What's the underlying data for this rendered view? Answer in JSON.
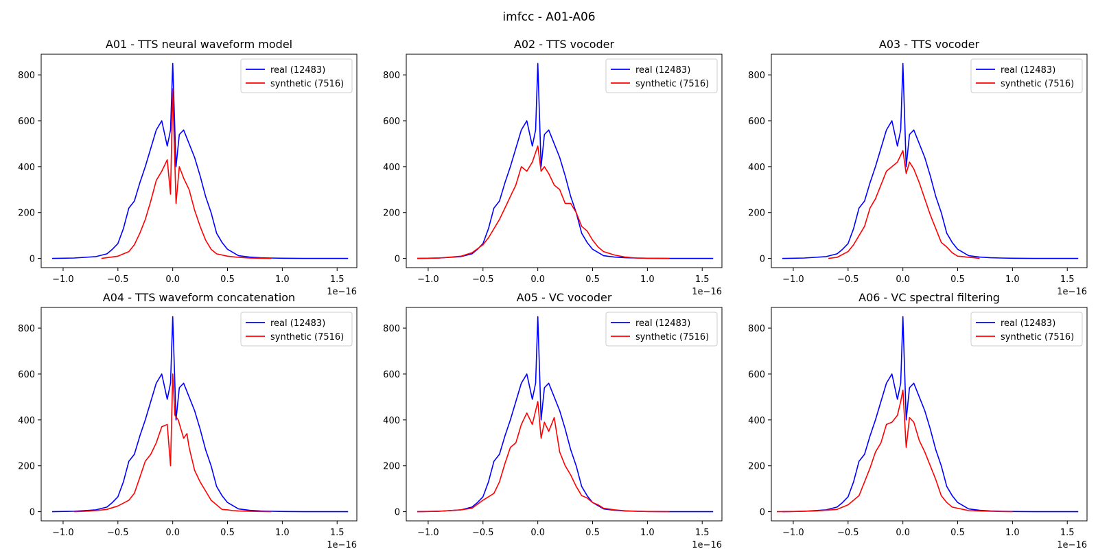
{
  "figure_title": "imfcc - A01-A06",
  "chart_data": [
    {
      "type": "line",
      "title": "A01 - TTS neural waveform model",
      "xlim": [
        -1.2,
        1.68
      ],
      "ylim": [
        -40,
        890
      ],
      "x_ticks": [
        -1.0,
        -0.5,
        0.0,
        0.5,
        1.0,
        1.5
      ],
      "x_tick_labels": [
        "−1.0",
        "−0.5",
        "0.0",
        "0.5",
        "1.0",
        "1.5"
      ],
      "y_ticks": [
        0,
        200,
        400,
        600,
        800
      ],
      "y_tick_labels": [
        "0",
        "200",
        "400",
        "600",
        "800"
      ],
      "x_offset_label": "1e−16",
      "legend": [
        "real (12483)",
        "synthetic (7516)"
      ],
      "series": [
        {
          "name": "real (12483)",
          "color": "#0000ff",
          "x": [
            -1.1,
            -0.9,
            -0.7,
            -0.6,
            -0.55,
            -0.5,
            -0.45,
            -0.4,
            -0.35,
            -0.3,
            -0.25,
            -0.2,
            -0.15,
            -0.1,
            -0.05,
            -0.02,
            0.0,
            0.03,
            0.06,
            0.1,
            0.15,
            0.2,
            0.25,
            0.3,
            0.35,
            0.4,
            0.45,
            0.5,
            0.6,
            0.7,
            0.8,
            0.9,
            1.0,
            1.2,
            1.4,
            1.6
          ],
          "y": [
            0,
            2,
            8,
            20,
            40,
            65,
            130,
            220,
            250,
            330,
            400,
            480,
            560,
            600,
            490,
            560,
            850,
            400,
            540,
            560,
            500,
            440,
            360,
            270,
            200,
            110,
            70,
            40,
            12,
            6,
            3,
            2,
            1,
            0,
            0,
            0
          ]
        },
        {
          "name": "synthetic (7516)",
          "color": "#ff0000",
          "x": [
            -0.65,
            -0.5,
            -0.4,
            -0.35,
            -0.3,
            -0.25,
            -0.2,
            -0.15,
            -0.1,
            -0.05,
            -0.02,
            0.0,
            0.03,
            0.06,
            0.1,
            0.15,
            0.2,
            0.25,
            0.3,
            0.35,
            0.4,
            0.5,
            0.6,
            0.7,
            0.8,
            0.9
          ],
          "y": [
            0,
            10,
            30,
            60,
            110,
            170,
            250,
            340,
            380,
            430,
            280,
            740,
            240,
            400,
            350,
            300,
            210,
            140,
            80,
            40,
            20,
            10,
            5,
            2,
            1,
            0
          ]
        }
      ]
    },
    {
      "type": "line",
      "title": "A02 - TTS vocoder",
      "xlim": [
        -1.2,
        1.68
      ],
      "ylim": [
        -40,
        890
      ],
      "x_ticks": [
        -1.0,
        -0.5,
        0.0,
        0.5,
        1.0,
        1.5
      ],
      "x_tick_labels": [
        "−1.0",
        "−0.5",
        "0.0",
        "0.5",
        "1.0",
        "1.5"
      ],
      "y_ticks": [
        0,
        200,
        400,
        600,
        800
      ],
      "y_tick_labels": [
        "0",
        "200",
        "400",
        "600",
        "800"
      ],
      "x_offset_label": "1e−16",
      "legend": [
        "real (12483)",
        "synthetic (7516)"
      ],
      "series": [
        {
          "name": "real (12483)",
          "color": "#0000ff",
          "x": [
            -1.1,
            -0.9,
            -0.7,
            -0.6,
            -0.55,
            -0.5,
            -0.45,
            -0.4,
            -0.35,
            -0.3,
            -0.25,
            -0.2,
            -0.15,
            -0.1,
            -0.05,
            -0.02,
            0.0,
            0.03,
            0.06,
            0.1,
            0.15,
            0.2,
            0.25,
            0.3,
            0.35,
            0.4,
            0.45,
            0.5,
            0.6,
            0.7,
            0.8,
            0.9,
            1.0,
            1.2,
            1.4,
            1.6
          ],
          "y": [
            0,
            2,
            8,
            20,
            40,
            65,
            130,
            220,
            250,
            330,
            400,
            480,
            560,
            600,
            490,
            560,
            850,
            400,
            540,
            560,
            500,
            440,
            360,
            270,
            200,
            110,
            70,
            40,
            12,
            6,
            3,
            2,
            1,
            0,
            0,
            0
          ]
        },
        {
          "name": "synthetic (7516)",
          "color": "#ff0000",
          "x": [
            -1.1,
            -0.9,
            -0.7,
            -0.6,
            -0.5,
            -0.45,
            -0.4,
            -0.35,
            -0.3,
            -0.25,
            -0.2,
            -0.15,
            -0.1,
            -0.05,
            0.0,
            0.03,
            0.06,
            0.1,
            0.15,
            0.2,
            0.25,
            0.3,
            0.35,
            0.4,
            0.45,
            0.5,
            0.55,
            0.6,
            0.7,
            0.8,
            0.9,
            1.0,
            1.2
          ],
          "y": [
            0,
            2,
            10,
            25,
            60,
            90,
            130,
            170,
            220,
            270,
            320,
            400,
            380,
            420,
            490,
            380,
            400,
            370,
            320,
            300,
            240,
            240,
            200,
            140,
            120,
            80,
            50,
            30,
            15,
            6,
            2,
            1,
            0
          ]
        }
      ]
    },
    {
      "type": "line",
      "title": "A03 - TTS vocoder",
      "xlim": [
        -1.2,
        1.68
      ],
      "ylim": [
        -40,
        890
      ],
      "x_ticks": [
        -1.0,
        -0.5,
        0.0,
        0.5,
        1.0,
        1.5
      ],
      "x_tick_labels": [
        "−1.0",
        "−0.5",
        "0.0",
        "0.5",
        "1.0",
        "1.5"
      ],
      "y_ticks": [
        0,
        200,
        400,
        600,
        800
      ],
      "y_tick_labels": [
        "0",
        "200",
        "400",
        "600",
        "800"
      ],
      "x_offset_label": "1e−16",
      "legend": [
        "real (12483)",
        "synthetic (7516)"
      ],
      "series": [
        {
          "name": "real (12483)",
          "color": "#0000ff",
          "x": [
            -1.1,
            -0.9,
            -0.7,
            -0.6,
            -0.55,
            -0.5,
            -0.45,
            -0.4,
            -0.35,
            -0.3,
            -0.25,
            -0.2,
            -0.15,
            -0.1,
            -0.05,
            -0.02,
            0.0,
            0.03,
            0.06,
            0.1,
            0.15,
            0.2,
            0.25,
            0.3,
            0.35,
            0.4,
            0.45,
            0.5,
            0.6,
            0.7,
            0.8,
            0.9,
            1.0,
            1.2,
            1.4,
            1.6
          ],
          "y": [
            0,
            2,
            8,
            20,
            40,
            65,
            130,
            220,
            250,
            330,
            400,
            480,
            560,
            600,
            490,
            560,
            850,
            400,
            540,
            560,
            500,
            440,
            360,
            270,
            200,
            110,
            70,
            40,
            12,
            6,
            3,
            2,
            1,
            0,
            0,
            0
          ]
        },
        {
          "name": "synthetic (7516)",
          "color": "#ff0000",
          "x": [
            -0.68,
            -0.6,
            -0.5,
            -0.45,
            -0.4,
            -0.35,
            -0.3,
            -0.25,
            -0.2,
            -0.15,
            -0.1,
            -0.05,
            0.0,
            0.03,
            0.06,
            0.1,
            0.15,
            0.2,
            0.25,
            0.3,
            0.35,
            0.4,
            0.45,
            0.5,
            0.55,
            0.6,
            0.65,
            0.7
          ],
          "y": [
            0,
            5,
            30,
            60,
            100,
            140,
            220,
            260,
            320,
            380,
            400,
            420,
            470,
            370,
            420,
            390,
            330,
            260,
            190,
            130,
            70,
            50,
            25,
            10,
            8,
            5,
            3,
            0
          ]
        }
      ]
    },
    {
      "type": "line",
      "title": "A04 - TTS waveform concatenation",
      "xlim": [
        -1.2,
        1.68
      ],
      "ylim": [
        -40,
        890
      ],
      "x_ticks": [
        -1.0,
        -0.5,
        0.0,
        0.5,
        1.0,
        1.5
      ],
      "x_tick_labels": [
        "−1.0",
        "−0.5",
        "0.0",
        "0.5",
        "1.0",
        "1.5"
      ],
      "y_ticks": [
        0,
        200,
        400,
        600,
        800
      ],
      "y_tick_labels": [
        "0",
        "200",
        "400",
        "600",
        "800"
      ],
      "x_offset_label": "1e−16",
      "legend": [
        "real (12483)",
        "synthetic (7516)"
      ],
      "series": [
        {
          "name": "real (12483)",
          "color": "#0000ff",
          "x": [
            -1.1,
            -0.9,
            -0.7,
            -0.6,
            -0.55,
            -0.5,
            -0.45,
            -0.4,
            -0.35,
            -0.3,
            -0.25,
            -0.2,
            -0.15,
            -0.1,
            -0.05,
            -0.02,
            0.0,
            0.03,
            0.06,
            0.1,
            0.15,
            0.2,
            0.25,
            0.3,
            0.35,
            0.4,
            0.45,
            0.5,
            0.6,
            0.7,
            0.8,
            0.9,
            1.0,
            1.2,
            1.4,
            1.6
          ],
          "y": [
            0,
            2,
            8,
            20,
            40,
            65,
            130,
            220,
            250,
            330,
            400,
            480,
            560,
            600,
            490,
            560,
            850,
            400,
            540,
            560,
            500,
            440,
            360,
            270,
            200,
            110,
            70,
            40,
            12,
            6,
            3,
            2,
            1,
            0,
            0,
            0
          ]
        },
        {
          "name": "synthetic (7516)",
          "color": "#ff0000",
          "x": [
            -0.9,
            -0.8,
            -0.7,
            -0.6,
            -0.5,
            -0.4,
            -0.35,
            -0.3,
            -0.25,
            -0.2,
            -0.15,
            -0.1,
            -0.05,
            -0.02,
            0.0,
            0.02,
            0.05,
            0.1,
            0.13,
            0.15,
            0.2,
            0.25,
            0.3,
            0.35,
            0.4,
            0.45,
            0.5,
            0.55,
            0.6,
            0.7,
            0.8,
            0.9
          ],
          "y": [
            0,
            2,
            5,
            10,
            25,
            50,
            80,
            150,
            220,
            250,
            300,
            370,
            380,
            200,
            600,
            420,
            400,
            320,
            340,
            280,
            180,
            130,
            90,
            50,
            30,
            10,
            8,
            5,
            3,
            2,
            1,
            0
          ]
        }
      ]
    },
    {
      "type": "line",
      "title": "A05 - VC vocoder",
      "xlim": [
        -1.2,
        1.68
      ],
      "ylim": [
        -40,
        890
      ],
      "x_ticks": [
        -1.0,
        -0.5,
        0.0,
        0.5,
        1.0,
        1.5
      ],
      "x_tick_labels": [
        "−1.0",
        "−0.5",
        "0.0",
        "0.5",
        "1.0",
        "1.5"
      ],
      "y_ticks": [
        0,
        200,
        400,
        600,
        800
      ],
      "y_tick_labels": [
        "0",
        "200",
        "400",
        "600",
        "800"
      ],
      "x_offset_label": "1e−16",
      "legend": [
        "real (12483)",
        "synthetic (7516)"
      ],
      "series": [
        {
          "name": "real (12483)",
          "color": "#0000ff",
          "x": [
            -1.1,
            -0.9,
            -0.7,
            -0.6,
            -0.55,
            -0.5,
            -0.45,
            -0.4,
            -0.35,
            -0.3,
            -0.25,
            -0.2,
            -0.15,
            -0.1,
            -0.05,
            -0.02,
            0.0,
            0.03,
            0.06,
            0.1,
            0.15,
            0.2,
            0.25,
            0.3,
            0.35,
            0.4,
            0.45,
            0.5,
            0.6,
            0.7,
            0.8,
            0.9,
            1.0,
            1.2,
            1.4,
            1.6
          ],
          "y": [
            0,
            2,
            8,
            20,
            40,
            65,
            130,
            220,
            250,
            330,
            400,
            480,
            560,
            600,
            490,
            560,
            850,
            400,
            540,
            560,
            500,
            440,
            360,
            270,
            200,
            110,
            70,
            40,
            12,
            6,
            3,
            2,
            1,
            0,
            0,
            0
          ]
        },
        {
          "name": "synthetic (7516)",
          "color": "#ff0000",
          "x": [
            -1.1,
            -0.9,
            -0.7,
            -0.6,
            -0.5,
            -0.4,
            -0.35,
            -0.3,
            -0.25,
            -0.2,
            -0.15,
            -0.1,
            -0.05,
            0.0,
            0.03,
            0.06,
            0.1,
            0.15,
            0.2,
            0.25,
            0.3,
            0.35,
            0.4,
            0.45,
            0.5,
            0.55,
            0.6,
            0.7,
            0.8,
            0.9,
            1.0,
            1.2
          ],
          "y": [
            0,
            2,
            8,
            15,
            50,
            80,
            130,
            210,
            280,
            300,
            380,
            430,
            380,
            480,
            320,
            390,
            350,
            410,
            260,
            200,
            160,
            110,
            70,
            60,
            40,
            30,
            15,
            8,
            4,
            2,
            1,
            0
          ]
        }
      ]
    },
    {
      "type": "line",
      "title": "A06 - VC spectral filtering",
      "xlim": [
        -1.2,
        1.68
      ],
      "ylim": [
        -40,
        890
      ],
      "x_ticks": [
        -1.0,
        -0.5,
        0.0,
        0.5,
        1.0,
        1.5
      ],
      "x_tick_labels": [
        "−1.0",
        "−0.5",
        "0.0",
        "0.5",
        "1.0",
        "1.5"
      ],
      "y_ticks": [
        0,
        200,
        400,
        600,
        800
      ],
      "y_tick_labels": [
        "0",
        "200",
        "400",
        "600",
        "800"
      ],
      "x_offset_label": "1e−16",
      "legend": [
        "real (12483)",
        "synthetic (7516)"
      ],
      "series": [
        {
          "name": "real (12483)",
          "color": "#0000ff",
          "x": [
            -1.1,
            -0.9,
            -0.7,
            -0.6,
            -0.55,
            -0.5,
            -0.45,
            -0.4,
            -0.35,
            -0.3,
            -0.25,
            -0.2,
            -0.15,
            -0.1,
            -0.05,
            -0.02,
            0.0,
            0.03,
            0.06,
            0.1,
            0.15,
            0.2,
            0.25,
            0.3,
            0.35,
            0.4,
            0.45,
            0.5,
            0.6,
            0.7,
            0.8,
            0.9,
            1.0,
            1.2,
            1.4,
            1.6
          ],
          "y": [
            0,
            2,
            8,
            20,
            40,
            65,
            130,
            220,
            250,
            330,
            400,
            480,
            560,
            600,
            490,
            560,
            850,
            400,
            540,
            560,
            500,
            440,
            360,
            270,
            200,
            110,
            70,
            40,
            12,
            6,
            3,
            2,
            1,
            0,
            0,
            0
          ]
        },
        {
          "name": "synthetic (7516)",
          "color": "#ff0000",
          "x": [
            -1.15,
            -1.0,
            -0.8,
            -0.6,
            -0.5,
            -0.4,
            -0.35,
            -0.3,
            -0.25,
            -0.2,
            -0.15,
            -0.1,
            -0.05,
            -0.02,
            0.0,
            0.03,
            0.06,
            0.1,
            0.15,
            0.2,
            0.25,
            0.3,
            0.35,
            0.4,
            0.45,
            0.5,
            0.55,
            0.6,
            0.7,
            0.8,
            0.9,
            1.0
          ],
          "y": [
            0,
            1,
            3,
            10,
            30,
            70,
            130,
            190,
            260,
            300,
            380,
            390,
            420,
            480,
            530,
            280,
            410,
            390,
            310,
            260,
            200,
            140,
            70,
            40,
            20,
            15,
            10,
            5,
            3,
            2,
            1,
            0
          ]
        }
      ]
    }
  ]
}
